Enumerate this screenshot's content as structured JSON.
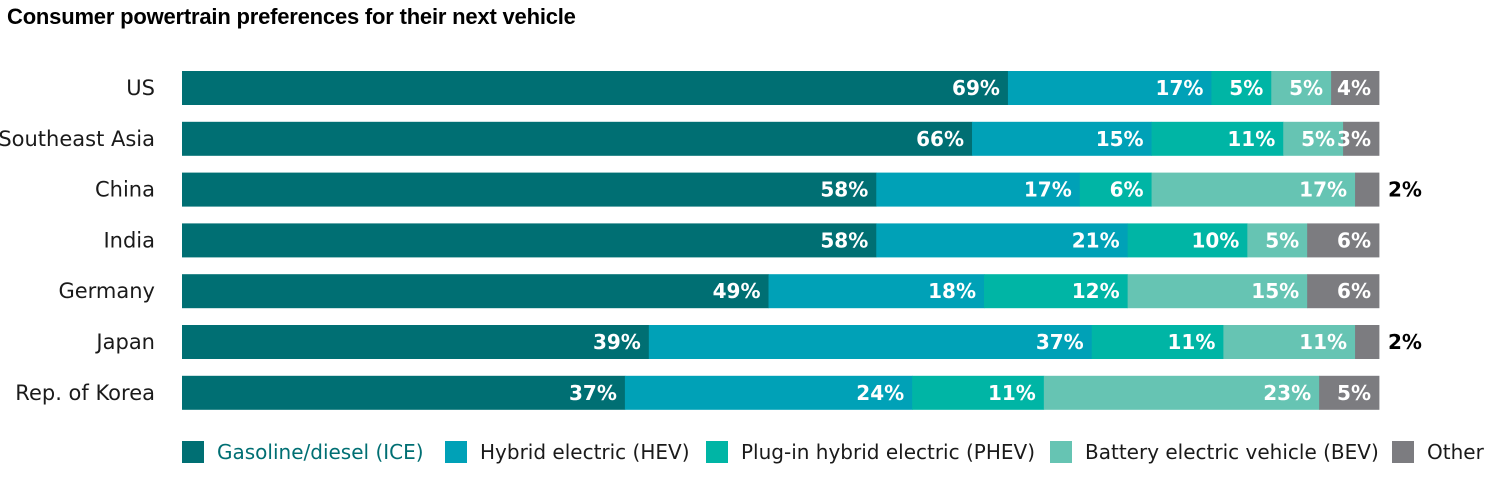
{
  "chart_data": {
    "type": "bar",
    "orientation": "horizontal",
    "stacked": true,
    "title": "Consumer powertrain preferences for their next vehicle",
    "categories": [
      "US",
      "Southeast Asia",
      "China",
      "India",
      "Germany",
      "Japan",
      "Rep. of Korea"
    ],
    "series": [
      {
        "name": "Gasoline/diesel (ICE)",
        "color": "#006f73",
        "values": [
          69,
          66,
          58,
          58,
          49,
          39,
          37
        ],
        "labels": [
          "69%",
          "66%",
          "58%",
          "58%",
          "49%",
          "39%",
          "37%"
        ]
      },
      {
        "name": "Hybrid electric (HEV)",
        "color": "#00a1b7",
        "values": [
          17,
          15,
          17,
          21,
          18,
          37,
          24
        ],
        "labels": [
          "17%",
          "15%",
          "17%",
          "21%",
          "18%",
          "37%",
          "24%"
        ]
      },
      {
        "name": "Plug-in hybrid electric (PHEV)",
        "color": "#00b5a5",
        "values": [
          5,
          11,
          6,
          10,
          12,
          11,
          11
        ],
        "labels": [
          "5%",
          "11%",
          "6%",
          "10%",
          "12%",
          "11%",
          "11%"
        ]
      },
      {
        "name": "Battery electric vehicle (BEV)",
        "color": "#66c4b3",
        "values": [
          5,
          5,
          17,
          5,
          15,
          11,
          23
        ],
        "labels": [
          "5%",
          "5%",
          "17%",
          "5%",
          "15%",
          "11%",
          "23%"
        ]
      },
      {
        "name": "Other",
        "color": "#7c7c80",
        "values": [
          4,
          3,
          2,
          6,
          6,
          2,
          5
        ],
        "labels": [
          "4%",
          "3%",
          "2%",
          "6%",
          "6%",
          "2%",
          "5%"
        ]
      }
    ],
    "outside_label_series": "Other",
    "outside_label_categories": [
      "China",
      "Japan"
    ],
    "legend": "bottom",
    "legend_highlight_color": "#006f73",
    "grid": false
  }
}
